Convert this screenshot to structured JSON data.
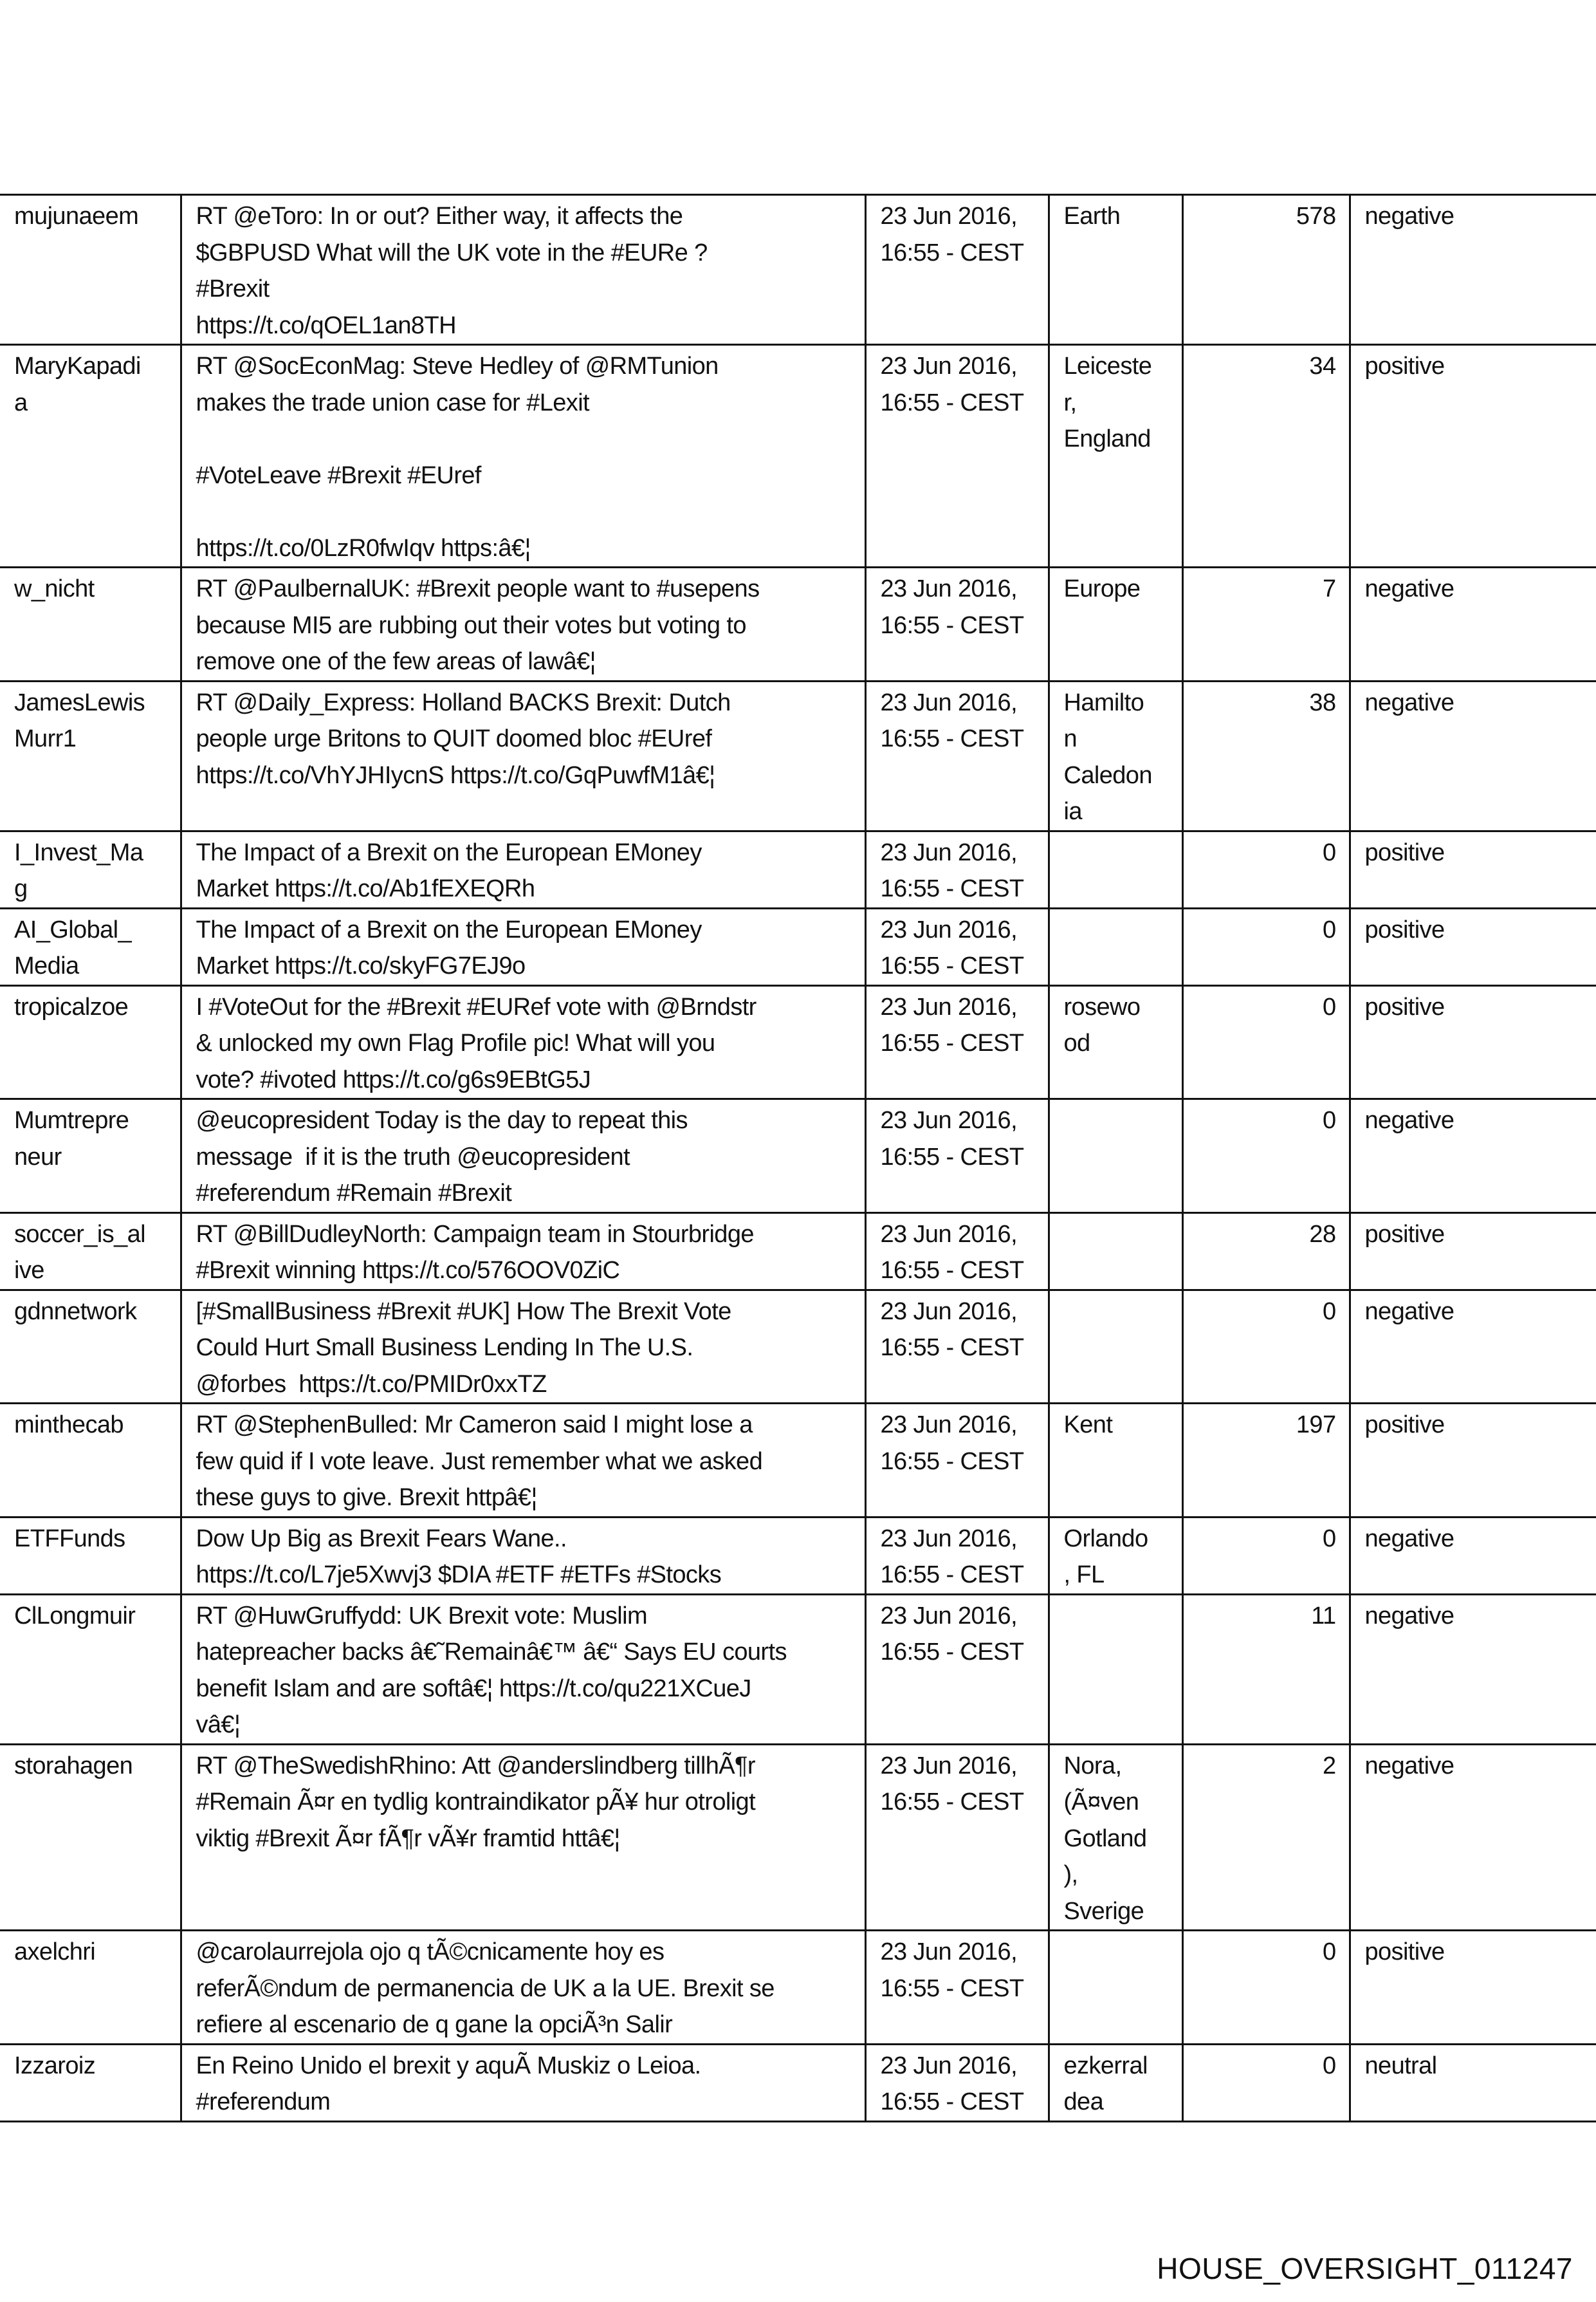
{
  "rows": [
    {
      "user": "mujunaeem",
      "tweet": "RT @eToro: In or out? Either way, it affects the\n$GBPUSD What will the UK vote in the #EURe ?\n#Brexit\nhttps://t.co/qOEL1an8TH",
      "date": "23 Jun 2016,\n16:55 - CEST",
      "location": "Earth",
      "count": "578",
      "sentiment": "negative"
    },
    {
      "user": "MaryKapadi\na",
      "tweet": "RT @SocEconMag: Steve Hedley of @RMTunion\nmakes the trade union case for #Lexit\n\n#VoteLeave #Brexit #EUref\n\nhttps://t.co/0LzR0fwIqv https:â€¦",
      "date": "23 Jun 2016,\n16:55 - CEST",
      "location": "Leiceste\nr,\nEngland",
      "count": "34",
      "sentiment": "positive"
    },
    {
      "user": "w_nicht",
      "tweet": "RT @PaulbernalUK: #Brexit people want to #usepens\nbecause MI5 are rubbing out their votes but voting to\nremove one of the few areas of lawâ€¦",
      "date": "23 Jun 2016,\n16:55 - CEST",
      "location": "Europe",
      "count": "7",
      "sentiment": "negative"
    },
    {
      "user": "JamesLewis\nMurr1",
      "tweet": "RT @Daily_Express: Holland BACKS Brexit: Dutch\npeople urge Britons to QUIT doomed bloc #EUref\nhttps://t.co/VhYJHIycnS https://t.co/GqPuwfM1â€¦",
      "date": "23 Jun 2016,\n16:55 - CEST",
      "location": "Hamilto\nn\nCaledon\nia",
      "count": "38",
      "sentiment": "negative"
    },
    {
      "user": "I_Invest_Ma\ng",
      "tweet": "The Impact of a Brexit on the European EMoney\nMarket https://t.co/Ab1fEXEQRh",
      "date": "23 Jun 2016,\n16:55 - CEST",
      "location": "",
      "count": "0",
      "sentiment": "positive"
    },
    {
      "user": "AI_Global_\nMedia",
      "tweet": "The Impact of a Brexit on the European EMoney\nMarket https://t.co/skyFG7EJ9o",
      "date": "23 Jun 2016,\n16:55 - CEST",
      "location": "",
      "count": "0",
      "sentiment": "positive"
    },
    {
      "user": "tropicalzoe",
      "tweet": "I #VoteOut for the #Brexit #EURef vote with @Brndstr\n& unlocked my own Flag Profile pic! What will you\nvote? #ivoted https://t.co/g6s9EBtG5J",
      "date": "23 Jun 2016,\n16:55 - CEST",
      "location": "rosewo\nod",
      "count": "0",
      "sentiment": "positive"
    },
    {
      "user": "Mumtrepre\nneur",
      "tweet": "@eucopresident Today is the day to repeat this\nmessage  if it is the truth @eucopresident\n#referendum #Remain #Brexit",
      "date": "23 Jun 2016,\n16:55 - CEST",
      "location": "",
      "count": "0",
      "sentiment": "negative"
    },
    {
      "user": "soccer_is_al\nive",
      "tweet": "RT @BillDudleyNorth: Campaign team in Stourbridge\n#Brexit winning https://t.co/576OOV0ZiC",
      "date": "23 Jun 2016,\n16:55 - CEST",
      "location": "",
      "count": "28",
      "sentiment": "positive"
    },
    {
      "user": "gdnnetwork",
      "tweet": "[#SmallBusiness #Brexit #UK] How The Brexit Vote\nCould Hurt Small Business Lending In The U.S.\n@forbes  https://t.co/PMIDr0xxTZ",
      "date": "23 Jun 2016,\n16:55 - CEST",
      "location": "",
      "count": "0",
      "sentiment": "negative"
    },
    {
      "user": "minthecab",
      "tweet": "RT @StephenBulled: Mr Cameron said I might lose a\nfew quid if I vote leave. Just remember what we asked\nthese guys to give. Brexit httpâ€¦",
      "date": "23 Jun 2016,\n16:55 - CEST",
      "location": "Kent",
      "count": "197",
      "sentiment": "positive"
    },
    {
      "user": "ETFFunds",
      "tweet": "Dow Up Big as Brexit Fears Wane..\nhttps://t.co/L7je5Xwvj3 $DIA #ETF #ETFs #Stocks",
      "date": "23 Jun 2016,\n16:55 - CEST",
      "location": "Orlando\n, FL",
      "count": "0",
      "sentiment": "negative"
    },
    {
      "user": "ClLongmuir",
      "tweet": "RT @HuwGruffydd: UK Brexit vote: Muslim\nhatepreacher backs â€˜Remainâ€™ â€“ Says EU courts\nbenefit Islam and are softâ€¦ https://t.co/qu221XCueJ\nvâ€¦",
      "date": "23 Jun 2016,\n16:55 - CEST",
      "location": "",
      "count": "11",
      "sentiment": "negative"
    },
    {
      "user": "storahagen",
      "tweet": "RT @TheSwedishRhino: Att @anderslindberg tillhÃ¶r\n#Remain Ã¤r en tydlig kontraindikator pÃ¥ hur otroligt\nviktig #Brexit Ã¤r fÃ¶r vÃ¥r framtid httâ€¦",
      "date": "23 Jun 2016,\n16:55 - CEST",
      "location": "Nora,\n(Ã¤ven\nGotland\n),\nSverige",
      "count": "2",
      "sentiment": "negative"
    },
    {
      "user": "axelchri",
      "tweet": "@carolaurrejola ojo q tÃ©cnicamente hoy es\nreferÃ©ndum de permanencia de UK a la UE. Brexit se\nrefiere al escenario de q gane la opciÃ³n Salir",
      "date": "23 Jun 2016,\n16:55 - CEST",
      "location": "",
      "count": "0",
      "sentiment": "positive"
    },
    {
      "user": "Izzaroiz",
      "tweet": "En Reino Unido el brexit y aquÃ Muskiz o Leioa.\n#referendum",
      "date": "23 Jun 2016,\n16:55 - CEST",
      "location": "ezkerral\ndea",
      "count": "0",
      "sentiment": "neutral"
    }
  ],
  "footer": {
    "bates_number": "HOUSE_OVERSIGHT_011247"
  }
}
